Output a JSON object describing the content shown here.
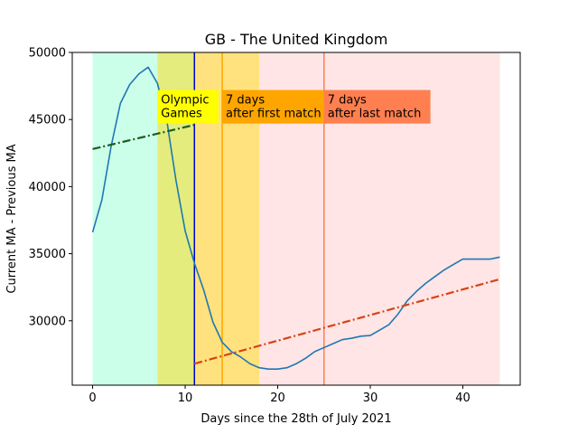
{
  "chart_data": {
    "type": "line",
    "title": "GB - The United Kingdom",
    "xlabel": "Days since the 28th of July 2021",
    "ylabel": "Current MA - Previous MA",
    "xlim": [
      -2.2,
      46.2
    ],
    "ylim": [
      25200,
      50000
    ],
    "xticks": [
      0,
      10,
      20,
      30,
      40
    ],
    "yticks": [
      30000,
      35000,
      40000,
      45000,
      50000
    ],
    "grid": false,
    "legend": "none",
    "bands": [
      {
        "x0": 0,
        "x1": 7,
        "color": "#ccffe9"
      },
      {
        "x0": 7,
        "x1": 11,
        "color": "#e3ec7c"
      },
      {
        "x0": 11,
        "x1": 18,
        "color": "#ffe27d"
      },
      {
        "x0": 18,
        "x1": 44,
        "color": "#ffe5e5"
      }
    ],
    "vlines": [
      {
        "x": 11,
        "color": "#0000cc"
      },
      {
        "x": 14,
        "color": "#ffa500"
      },
      {
        "x": 25,
        "color": "#ff7f50"
      }
    ],
    "series": [
      {
        "kind": "main",
        "color": "#1f77b4",
        "x": [
          0,
          1,
          2,
          3,
          4,
          5,
          6,
          7,
          8,
          9,
          10,
          11,
          12,
          13,
          14,
          15,
          16,
          17,
          18,
          19,
          20,
          21,
          22,
          23,
          24,
          25,
          26,
          27,
          28,
          29,
          30,
          31,
          32,
          33,
          34,
          35,
          36,
          37,
          38,
          39,
          40,
          41,
          42,
          43,
          44
        ],
        "values": [
          36600,
          39000,
          43000,
          46200,
          47600,
          48400,
          48900,
          47700,
          45000,
          40500,
          36700,
          34300,
          32300,
          29900,
          28400,
          27700,
          27300,
          26800,
          26500,
          26400,
          26400,
          26500,
          26800,
          27200,
          27700,
          28000,
          28300,
          28600,
          28700,
          28850,
          28900,
          29300,
          29700,
          30500,
          31500,
          32200,
          32800,
          33300,
          33800,
          34200,
          34600,
          34600,
          34600,
          34600,
          34750
        ]
      },
      {
        "kind": "trend",
        "color": "#1b5e20",
        "x": [
          0,
          11
        ],
        "values": [
          42800,
          44600
        ]
      },
      {
        "kind": "trend",
        "color": "#d84315",
        "x": [
          11,
          44
        ],
        "values": [
          26800,
          33100
        ]
      }
    ],
    "annotations": [
      {
        "lines": [
          "Olympic",
          "Games"
        ],
        "x": 7,
        "y": 47200,
        "width": 6.6,
        "height_units": 2500,
        "bg": "#ffff00"
      },
      {
        "lines": [
          "7 days",
          "after first match"
        ],
        "x": 14,
        "y": 47200,
        "width": 11,
        "height_units": 2500,
        "bg": "#ffa500"
      },
      {
        "lines": [
          "7 days",
          "after last match"
        ],
        "x": 25,
        "y": 47200,
        "width": 11.5,
        "height_units": 2500,
        "bg": "#ff7f50"
      }
    ]
  }
}
